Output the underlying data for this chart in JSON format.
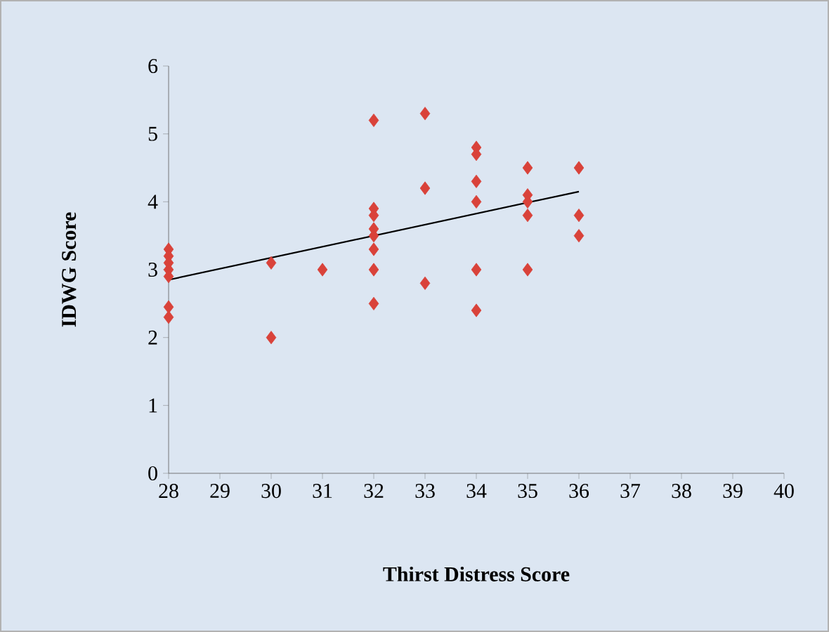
{
  "chart_data": {
    "type": "scatter",
    "xlabel": "Thirst Distress Score",
    "ylabel": "IDWG  Score",
    "xlim": [
      28,
      40
    ],
    "xticks": [
      28,
      29,
      30,
      31,
      32,
      33,
      34,
      35,
      36,
      37,
      38,
      39,
      40
    ],
    "ylim": [
      0,
      6
    ],
    "yticks": [
      0,
      1,
      2,
      3,
      4,
      5,
      6
    ],
    "grid": false,
    "series": [
      {
        "color": "#d9423a",
        "marker": "diamond",
        "x": [
          28,
          28,
          28,
          28,
          28,
          28,
          28,
          30,
          30,
          31,
          32,
          32,
          32,
          32,
          32,
          32,
          32,
          32,
          33,
          33,
          33,
          34,
          34,
          34,
          34,
          34,
          34,
          35,
          35,
          35,
          35,
          35,
          36,
          36,
          36
        ],
        "values": [
          3.3,
          3.2,
          3.1,
          3.0,
          2.9,
          2.45,
          2.3,
          3.1,
          2.0,
          3.0,
          5.2,
          3.9,
          3.8,
          3.6,
          3.5,
          3.3,
          3.0,
          2.5,
          5.3,
          4.2,
          2.8,
          4.8,
          4.7,
          4.3,
          4.0,
          3.0,
          2.4,
          4.5,
          4.1,
          4.0,
          3.8,
          3.0,
          4.5,
          3.8,
          3.5
        ]
      },
      {
        "type": "line",
        "color": "#000000",
        "marker": "none",
        "line_style": "solid",
        "x": [
          28,
          36
        ],
        "values": [
          2.85,
          4.15
        ]
      }
    ]
  }
}
